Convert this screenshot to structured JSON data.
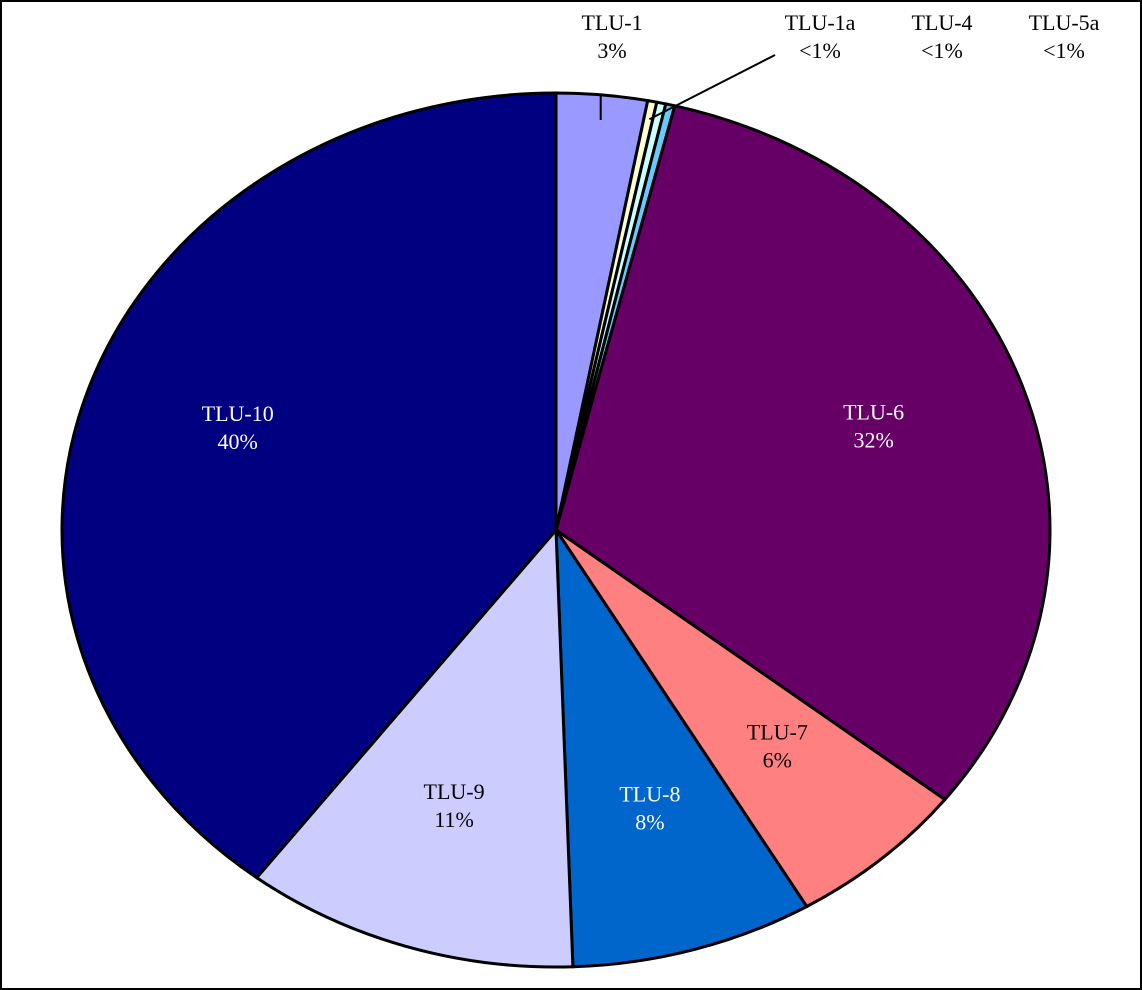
{
  "chart_data": {
    "type": "pie",
    "categories": [
      "TLU-1",
      "TLU-1a",
      "TLU-4",
      "TLU-5a",
      "TLU-6",
      "TLU-7",
      "TLU-8",
      "TLU-9",
      "TLU-10"
    ],
    "values": [
      3,
      0.3,
      0.3,
      0.3,
      32,
      6,
      8,
      11,
      40
    ],
    "value_labels": [
      "3%",
      "<1%",
      "<1%",
      "<1%",
      "32%",
      "6%",
      "8%",
      "11%",
      "40%"
    ],
    "colors": [
      "#9999ff",
      "#ffffcc",
      "#ccffff",
      "#66ccff",
      "#660066",
      "#ff8080",
      "#0066cc",
      "#ccccff",
      "#000080"
    ]
  }
}
